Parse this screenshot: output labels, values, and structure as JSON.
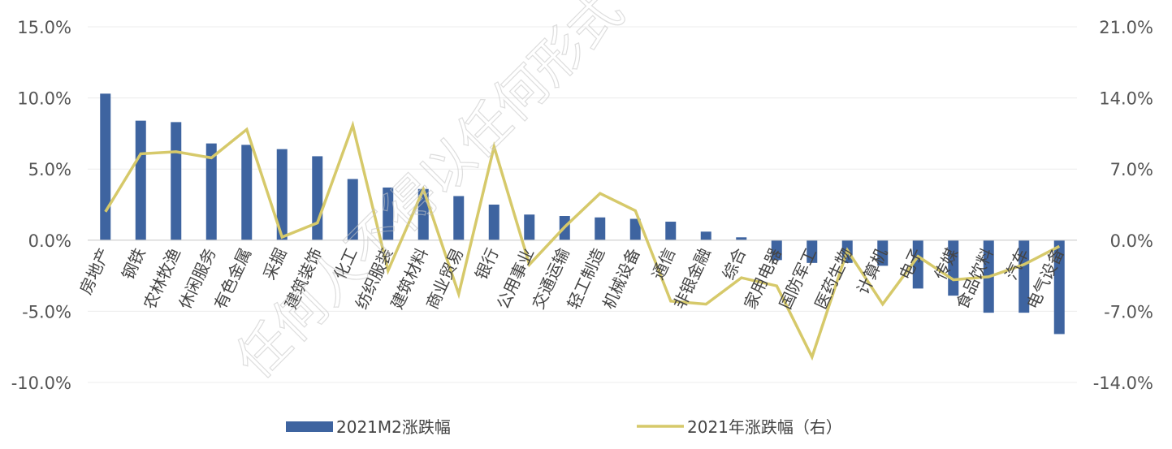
{
  "chart_data": {
    "type": "bar",
    "categories": [
      "房地产",
      "钢铁",
      "农林牧渔",
      "休闲服务",
      "有色金属",
      "采掘",
      "建筑装饰",
      "化工",
      "纺织服装",
      "建筑材料",
      "商业贸易",
      "银行",
      "公用事业",
      "交通运输",
      "轻工制造",
      "机械设备",
      "通信",
      "非银金融",
      "综合",
      "家用电器",
      "国防军工",
      "医药生物",
      "计算机",
      "电子",
      "传媒",
      "食品饮料",
      "汽车",
      "电气设备"
    ],
    "series": [
      {
        "name": "2021M2涨跌幅",
        "type": "bar",
        "axis": "left",
        "color": "#3e64a0",
        "values": [
          10.3,
          8.4,
          8.3,
          6.8,
          6.7,
          6.4,
          5.9,
          4.3,
          3.7,
          3.6,
          3.1,
          2.5,
          1.8,
          1.7,
          1.6,
          1.5,
          1.3,
          0.6,
          0.2,
          -1.4,
          -1.6,
          -1.6,
          -1.8,
          -3.4,
          -3.9,
          -5.1,
          -5.1,
          -6.6
        ]
      },
      {
        "name": "2021年涨跌幅（右）",
        "type": "line",
        "axis": "right",
        "color": "#d6c96a",
        "values": [
          2.8,
          8.5,
          8.7,
          8.1,
          10.9,
          0.3,
          1.7,
          11.3,
          -3.0,
          5.0,
          -5.3,
          9.2,
          -2.4,
          1.3,
          4.6,
          2.9,
          -6.0,
          -6.3,
          -3.7,
          -4.5,
          -11.5,
          -1.0,
          -6.3,
          -1.6,
          -3.9,
          -3.6,
          -2.4,
          -0.6
        ]
      }
    ],
    "ylim_left": [
      -10,
      15
    ],
    "ylim_right": [
      -14,
      21
    ],
    "y_ticks_left": [
      "15.0%",
      "10.0%",
      "5.0%",
      "0.0%",
      "-5.0%",
      "-10.0%"
    ],
    "y_ticks_right": [
      "21.0%",
      "14.0%",
      "7.0%",
      "0.0%",
      "-7.0%",
      "-14.0%"
    ],
    "grid": true,
    "legend_position": "bottom",
    "watermark_text": "任何人不得以任何形式"
  }
}
